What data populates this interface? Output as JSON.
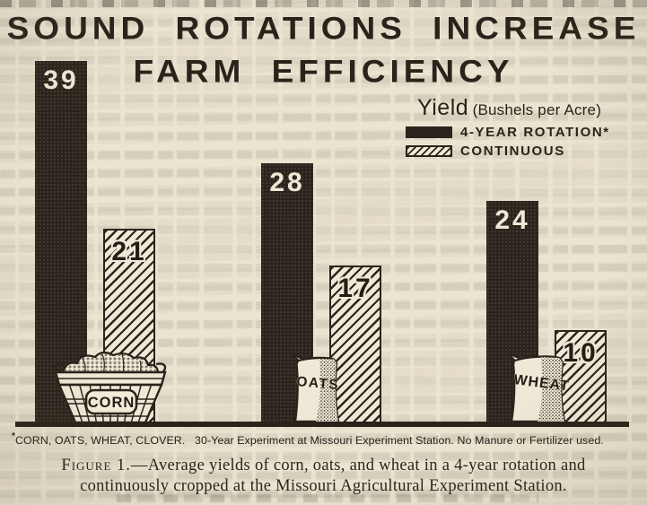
{
  "title": {
    "line1": "SOUND ROTATIONS INCREASE",
    "line2": "FARM EFFICIENCY"
  },
  "legend": {
    "title_word": "Yield",
    "title_units": "(Bushels per Acre)",
    "entries": [
      {
        "label": "4-YEAR ROTATION*",
        "style": "solid-black"
      },
      {
        "label": "CONTINUOUS",
        "style": "diagonal-hatch"
      }
    ]
  },
  "chart_data": {
    "type": "bar",
    "title": "SOUND ROTATIONS INCREASE FARM EFFICIENCY",
    "categories": [
      "CORN",
      "OATS",
      "WHEAT"
    ],
    "series": [
      {
        "name": "4-YEAR ROTATION",
        "pattern": "solid-black",
        "values": [
          39,
          28,
          24
        ]
      },
      {
        "name": "CONTINUOUS",
        "pattern": "diagonal-hatch",
        "values": [
          21,
          17,
          10
        ]
      }
    ],
    "ylabel": "Yield (Bushels per Acre)",
    "xlabel": "",
    "ylim": [
      0,
      40
    ],
    "grid": false,
    "axes_shown": false,
    "bar_value_labels_shown": true,
    "legend_position": "upper-right"
  },
  "icons": {
    "corn": {
      "label": "CORN",
      "type": "bushel-basket-of-corn-ears"
    },
    "oats": {
      "label": "OATS",
      "type": "grain-sack"
    },
    "wheat": {
      "label": "WHEAT",
      "type": "grain-sack"
    }
  },
  "footnote": {
    "marker": "*",
    "text": "CORN, OATS, WHEAT, CLOVER.   30-Year Experiment at Missouri Experiment Station. No Manure or Fertilizer used."
  },
  "caption": {
    "figure_label": "Figure 1.",
    "line1_rest": "—Average yields of corn, oats, and wheat in a 4-year rotation and",
    "line2": "continuously cropped at the Missouri Agricultural Experiment Station."
  },
  "colors": {
    "paper": "#ebe4d1",
    "ink": "#29231b",
    "bar_paper": "#efe8d6"
  }
}
